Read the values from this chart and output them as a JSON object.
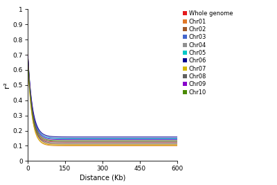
{
  "series": [
    {
      "label": "Whole genome",
      "color": "#e41a1c",
      "rate": 0.06,
      "r0": 0.72,
      "asym": 0.125
    },
    {
      "label": "Chr01",
      "color": "#e07828",
      "rate": 0.06,
      "r0": 0.68,
      "asym": 0.1
    },
    {
      "label": "Chr02",
      "color": "#a05828",
      "rate": 0.058,
      "r0": 0.7,
      "asym": 0.11
    },
    {
      "label": "Chr03",
      "color": "#4466cc",
      "rate": 0.055,
      "r0": 0.71,
      "asym": 0.15
    },
    {
      "label": "Chr04",
      "color": "#909090",
      "rate": 0.058,
      "r0": 0.69,
      "asym": 0.128
    },
    {
      "label": "Chr05",
      "color": "#00c8c8",
      "rate": 0.056,
      "r0": 0.7,
      "asym": 0.145
    },
    {
      "label": "Chr06",
      "color": "#000090",
      "rate": 0.054,
      "r0": 0.71,
      "asym": 0.158
    },
    {
      "label": "Chr07",
      "color": "#d4b800",
      "rate": 0.062,
      "r0": 0.68,
      "asym": 0.105
    },
    {
      "label": "Chr08",
      "color": "#606060",
      "rate": 0.059,
      "r0": 0.7,
      "asym": 0.118
    },
    {
      "label": "Chr09",
      "color": "#8800cc",
      "rate": 0.056,
      "r0": 0.71,
      "asym": 0.14
    },
    {
      "label": "Chr10",
      "color": "#4a8a00",
      "rate": 0.057,
      "r0": 0.69,
      "asym": 0.133
    }
  ],
  "xlim": [
    0,
    600
  ],
  "ylim": [
    0,
    1.0
  ],
  "xlabel": "Distance (Kb)",
  "ylabel": "r²",
  "yticks": [
    0,
    0.1,
    0.2,
    0.3,
    0.4,
    0.5,
    0.6,
    0.7,
    0.8,
    0.9,
    1
  ],
  "ytick_labels": [
    "0",
    "0.1",
    "0.2",
    "0.3",
    "0.4",
    "0.5",
    "0.6",
    "0.7",
    "0.8",
    "0.9",
    "1"
  ],
  "xticks": [
    0,
    150,
    300,
    450,
    600
  ],
  "linewidth": 0.8,
  "background_color": "#ffffff",
  "figwidth": 4.0,
  "figheight": 2.67,
  "dpi": 100
}
